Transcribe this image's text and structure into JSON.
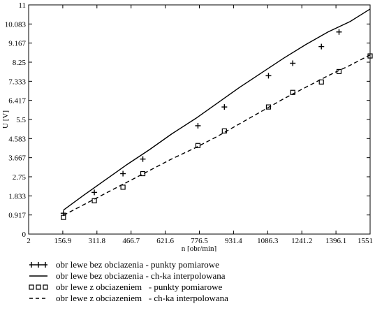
{
  "chart_data": {
    "type": "line",
    "xlabel": "n [obr/min]",
    "ylabel": "U [V]",
    "xlim": [
      2,
      1551
    ],
    "ylim": [
      0,
      11
    ],
    "xticks": [
      "2",
      "156.9",
      "311.8",
      "466.7",
      "621.6",
      "776.5",
      "931.4",
      "1086.3",
      "1241.2",
      "1396.1",
      "1551"
    ],
    "yticks": [
      "0",
      "0.917",
      "1.833",
      "2.75",
      "3.667",
      "4.583",
      "5.5",
      "6.417",
      "7.333",
      "8.25",
      "9.167",
      "10.083",
      "11"
    ],
    "grid": false,
    "legend_position": "bottom",
    "series": [
      {
        "name": "obr lewe bez obciazenia - punkty pomiarowe",
        "style": "plus-markers",
        "x": [
          160,
          300,
          430,
          520,
          770,
          890,
          1090,
          1200,
          1330,
          1410
        ],
        "y": [
          1.0,
          2.0,
          2.9,
          3.6,
          5.2,
          6.1,
          7.6,
          8.2,
          9.0,
          9.7
        ]
      },
      {
        "name": "obr lewe bez obciazenia - ch-ka interpolowana",
        "style": "solid-line",
        "x": [
          160,
          250,
          350,
          450,
          550,
          650,
          760,
          860,
          960,
          1060,
          1160,
          1260,
          1360,
          1460,
          1551
        ],
        "y": [
          1.15,
          1.85,
          2.6,
          3.35,
          4.05,
          4.8,
          5.55,
          6.3,
          7.05,
          7.75,
          8.45,
          9.1,
          9.7,
          10.2,
          10.8
        ]
      },
      {
        "name": "obr lewe z obciazeniem   - punkty pomiarowe",
        "style": "square-markers",
        "x": [
          160,
          300,
          430,
          520,
          770,
          890,
          1090,
          1200,
          1330,
          1410,
          1551
        ],
        "y": [
          0.8,
          1.6,
          2.25,
          2.9,
          4.25,
          4.95,
          6.1,
          6.8,
          7.3,
          7.8,
          8.55
        ]
      },
      {
        "name": "obr lewe z obciazeniem   - ch-ka interpolowana",
        "style": "dashed-line",
        "x": [
          160,
          250,
          350,
          450,
          550,
          650,
          760,
          860,
          960,
          1060,
          1160,
          1260,
          1360,
          1460,
          1551
        ],
        "y": [
          0.9,
          1.4,
          1.95,
          2.5,
          3.05,
          3.6,
          4.15,
          4.7,
          5.3,
          5.9,
          6.5,
          7.05,
          7.6,
          8.1,
          8.6
        ]
      }
    ]
  }
}
